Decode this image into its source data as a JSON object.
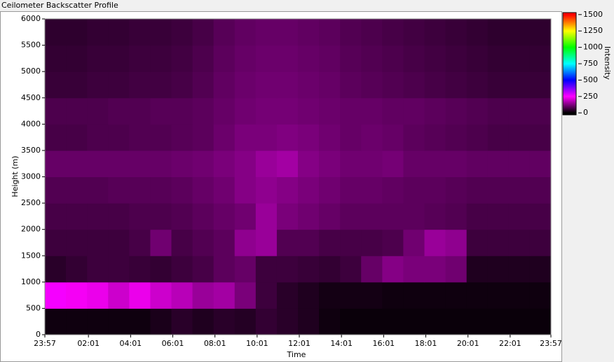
{
  "chart_data": {
    "type": "heatmap",
    "title": "Ceilometer Backscatter Profile",
    "x_label": "Time",
    "y_label": "Height (m)",
    "colorbar_label": "Intensity",
    "xlim": [
      0,
      1440
    ],
    "xticks": [
      {
        "value": 0,
        "label": "23:57"
      },
      {
        "value": 124,
        "label": "02:01"
      },
      {
        "value": 244,
        "label": "04:01"
      },
      {
        "value": 364,
        "label": "06:01"
      },
      {
        "value": 484,
        "label": "08:01"
      },
      {
        "value": 604,
        "label": "10:01"
      },
      {
        "value": 724,
        "label": "12:01"
      },
      {
        "value": 844,
        "label": "14:01"
      },
      {
        "value": 964,
        "label": "16:01"
      },
      {
        "value": 1084,
        "label": "18:01"
      },
      {
        "value": 1204,
        "label": "20:01"
      },
      {
        "value": 1324,
        "label": "22:01"
      },
      {
        "value": 1440,
        "label": "23:57"
      }
    ],
    "ylim": [
      0,
      6000
    ],
    "yticks": [
      0,
      500,
      1000,
      1500,
      2000,
      2500,
      3000,
      3500,
      4000,
      4500,
      5000,
      5500,
      6000
    ],
    "clim": [
      -30,
      1530
    ],
    "cticks": [
      0,
      250,
      500,
      750,
      1000,
      1250,
      1500
    ],
    "colorscale": [
      [
        0,
        "#000000"
      ],
      [
        250,
        "#ff00ff"
      ],
      [
        500,
        "#0000ff"
      ],
      [
        750,
        "#00ffff"
      ],
      [
        1000,
        "#00ff00"
      ],
      [
        1250,
        "#ffff00"
      ],
      [
        1500,
        "#ff0000"
      ]
    ],
    "values": [
      [
        15,
        15,
        15,
        15,
        15,
        25,
        40,
        30,
        40,
        35,
        50,
        40,
        30,
        15,
        10,
        10,
        10,
        10,
        10,
        10,
        10,
        10,
        10,
        10
      ],
      [
        260,
        240,
        230,
        200,
        230,
        200,
        180,
        150,
        160,
        120,
        60,
        40,
        30,
        20,
        20,
        20,
        15,
        15,
        15,
        15,
        15,
        15,
        15,
        15
      ],
      [
        40,
        50,
        60,
        60,
        55,
        50,
        60,
        70,
        90,
        100,
        60,
        60,
        55,
        50,
        60,
        100,
        130,
        120,
        120,
        110,
        30,
        30,
        30,
        30
      ],
      [
        60,
        60,
        60,
        60,
        70,
        110,
        70,
        80,
        90,
        140,
        150,
        80,
        80,
        70,
        70,
        70,
        75,
        110,
        150,
        140,
        60,
        60,
        60,
        60
      ],
      [
        70,
        70,
        70,
        70,
        75,
        75,
        80,
        90,
        100,
        110,
        150,
        120,
        110,
        100,
        90,
        90,
        90,
        90,
        85,
        80,
        70,
        70,
        70,
        70
      ],
      [
        80,
        80,
        80,
        85,
        85,
        85,
        90,
        100,
        110,
        130,
        140,
        130,
        120,
        110,
        100,
        100,
        95,
        90,
        90,
        85,
        80,
        80,
        80,
        80
      ],
      [
        100,
        100,
        100,
        100,
        100,
        100,
        105,
        110,
        120,
        130,
        150,
        160,
        130,
        120,
        110,
        110,
        115,
        100,
        100,
        100,
        95,
        95,
        95,
        95
      ],
      [
        70,
        70,
        75,
        75,
        80,
        80,
        85,
        90,
        105,
        120,
        120,
        125,
        120,
        110,
        100,
        105,
        100,
        90,
        85,
        80,
        75,
        70,
        70,
        70
      ],
      [
        75,
        75,
        75,
        80,
        80,
        85,
        85,
        90,
        100,
        110,
        115,
        115,
        110,
        105,
        100,
        100,
        95,
        95,
        90,
        85,
        80,
        75,
        75,
        75
      ],
      [
        55,
        55,
        60,
        60,
        65,
        65,
        70,
        80,
        95,
        105,
        110,
        110,
        105,
        100,
        90,
        85,
        80,
        75,
        70,
        65,
        60,
        55,
        55,
        55
      ],
      [
        50,
        50,
        55,
        55,
        60,
        60,
        65,
        75,
        90,
        100,
        105,
        105,
        100,
        95,
        85,
        80,
        75,
        70,
        65,
        60,
        55,
        50,
        50,
        50
      ],
      [
        45,
        45,
        50,
        50,
        55,
        55,
        60,
        70,
        85,
        95,
        100,
        100,
        95,
        90,
        80,
        75,
        70,
        65,
        60,
        55,
        50,
        45,
        45,
        45
      ]
    ]
  }
}
